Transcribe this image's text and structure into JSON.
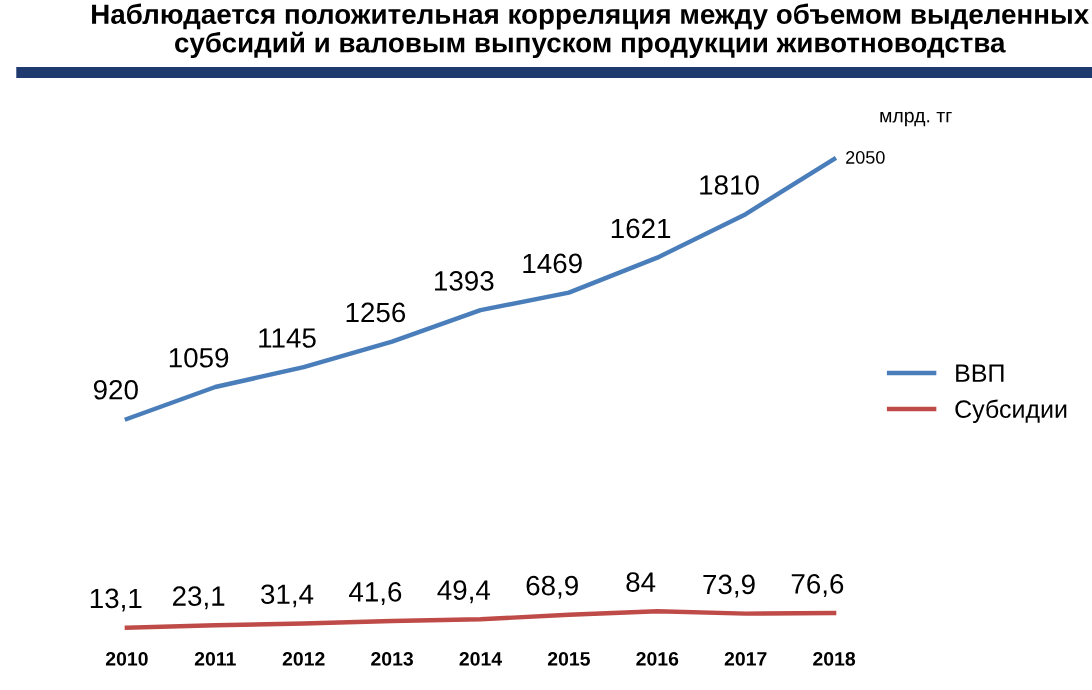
{
  "chart_data": {
    "type": "line",
    "title": "Наблюдается положительная корреляция между объемом выделенных\nсубсидий и валовым выпуском продукции животноводства",
    "annotations": [
      "млрд. тг"
    ],
    "categories": [
      "2010",
      "2011",
      "2012",
      "2013",
      "2014",
      "2015",
      "2016",
      "2017",
      "2018"
    ],
    "series": [
      {
        "name": "ВВП",
        "color": "#4a7ebb",
        "values": [
          920,
          1059,
          1145,
          1256,
          1393,
          1469,
          1621,
          1810,
          2050
        ],
        "value_labels": [
          "920",
          "1059",
          "1145",
          "1256",
          "1393",
          "1469",
          "1621",
          "1810",
          "2050"
        ]
      },
      {
        "name": "Субсидии",
        "color": "#be4b48",
        "values": [
          13.1,
          23.1,
          31.4,
          41.6,
          49.4,
          68.9,
          84,
          73.9,
          76.6
        ],
        "value_labels": [
          "13,1",
          "23,1",
          "31,4",
          "41,6",
          "49,4",
          "68,9",
          "84",
          "73,9",
          "76,6"
        ]
      }
    ],
    "legend": "right",
    "grid": false,
    "marker": "none",
    "line_style": "solid",
    "tick_labels": "x"
  }
}
